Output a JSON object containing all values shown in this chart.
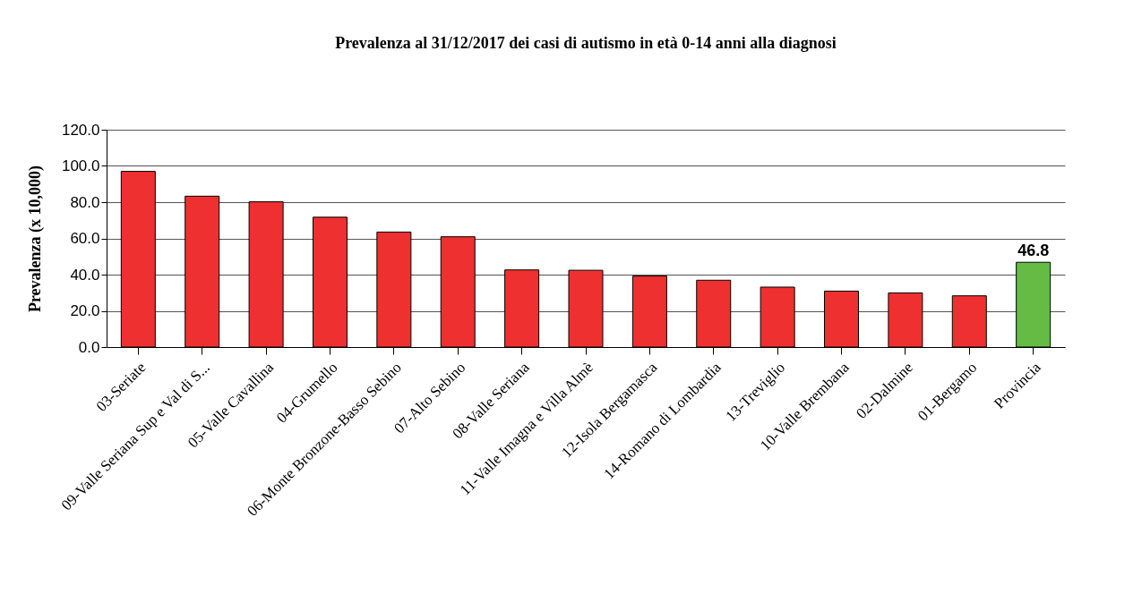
{
  "chart_data": {
    "type": "bar",
    "title": "Prevalenza al 31/12/2017 dei casi di autismo in età 0-14 anni alla diagnosi",
    "ylabel": "Prevalenza (x 10,000)",
    "categories": [
      "03-Seriate",
      "09-Valle Seriana Sup e Val di S...",
      "05-Valle Cavallina",
      "04-Grumello",
      "06-Monte Bronzone-Basso Sebino",
      "07-Alto Sebino",
      "08-Valle Seriana",
      "11-Valle Imagna e Villa Almè",
      "12-Isola Bergamasca",
      "14-Romano di Lombardia",
      "13-Treviglio",
      "10-Valle Brembana",
      "02-Dalmine",
      "01-Bergamo",
      "Provincia"
    ],
    "values": [
      97.0,
      83.3,
      80.2,
      71.7,
      63.5,
      60.9,
      42.6,
      42.4,
      39.2,
      36.9,
      33.1,
      30.9,
      29.9,
      28.3,
      46.8
    ],
    "colors": [
      "#ee3030",
      "#ee3030",
      "#ee3030",
      "#ee3030",
      "#ee3030",
      "#ee3030",
      "#ee3030",
      "#ee3030",
      "#ee3030",
      "#ee3030",
      "#ee3030",
      "#ee3030",
      "#ee3030",
      "#ee3030",
      "#66bb44"
    ],
    "value_labels": [
      null,
      null,
      null,
      null,
      null,
      null,
      null,
      null,
      null,
      null,
      null,
      null,
      null,
      null,
      "46.8"
    ],
    "ylim": [
      0,
      120
    ],
    "yticks": [
      {
        "value": 0,
        "label": "0.0"
      },
      {
        "value": 20,
        "label": "20.0"
      },
      {
        "value": 40,
        "label": "40.0"
      },
      {
        "value": 60,
        "label": "60.0"
      },
      {
        "value": 80,
        "label": "80.0"
      },
      {
        "value": 100,
        "label": "100.0"
      },
      {
        "value": 120,
        "label": "120.0"
      }
    ],
    "grid": "y"
  }
}
